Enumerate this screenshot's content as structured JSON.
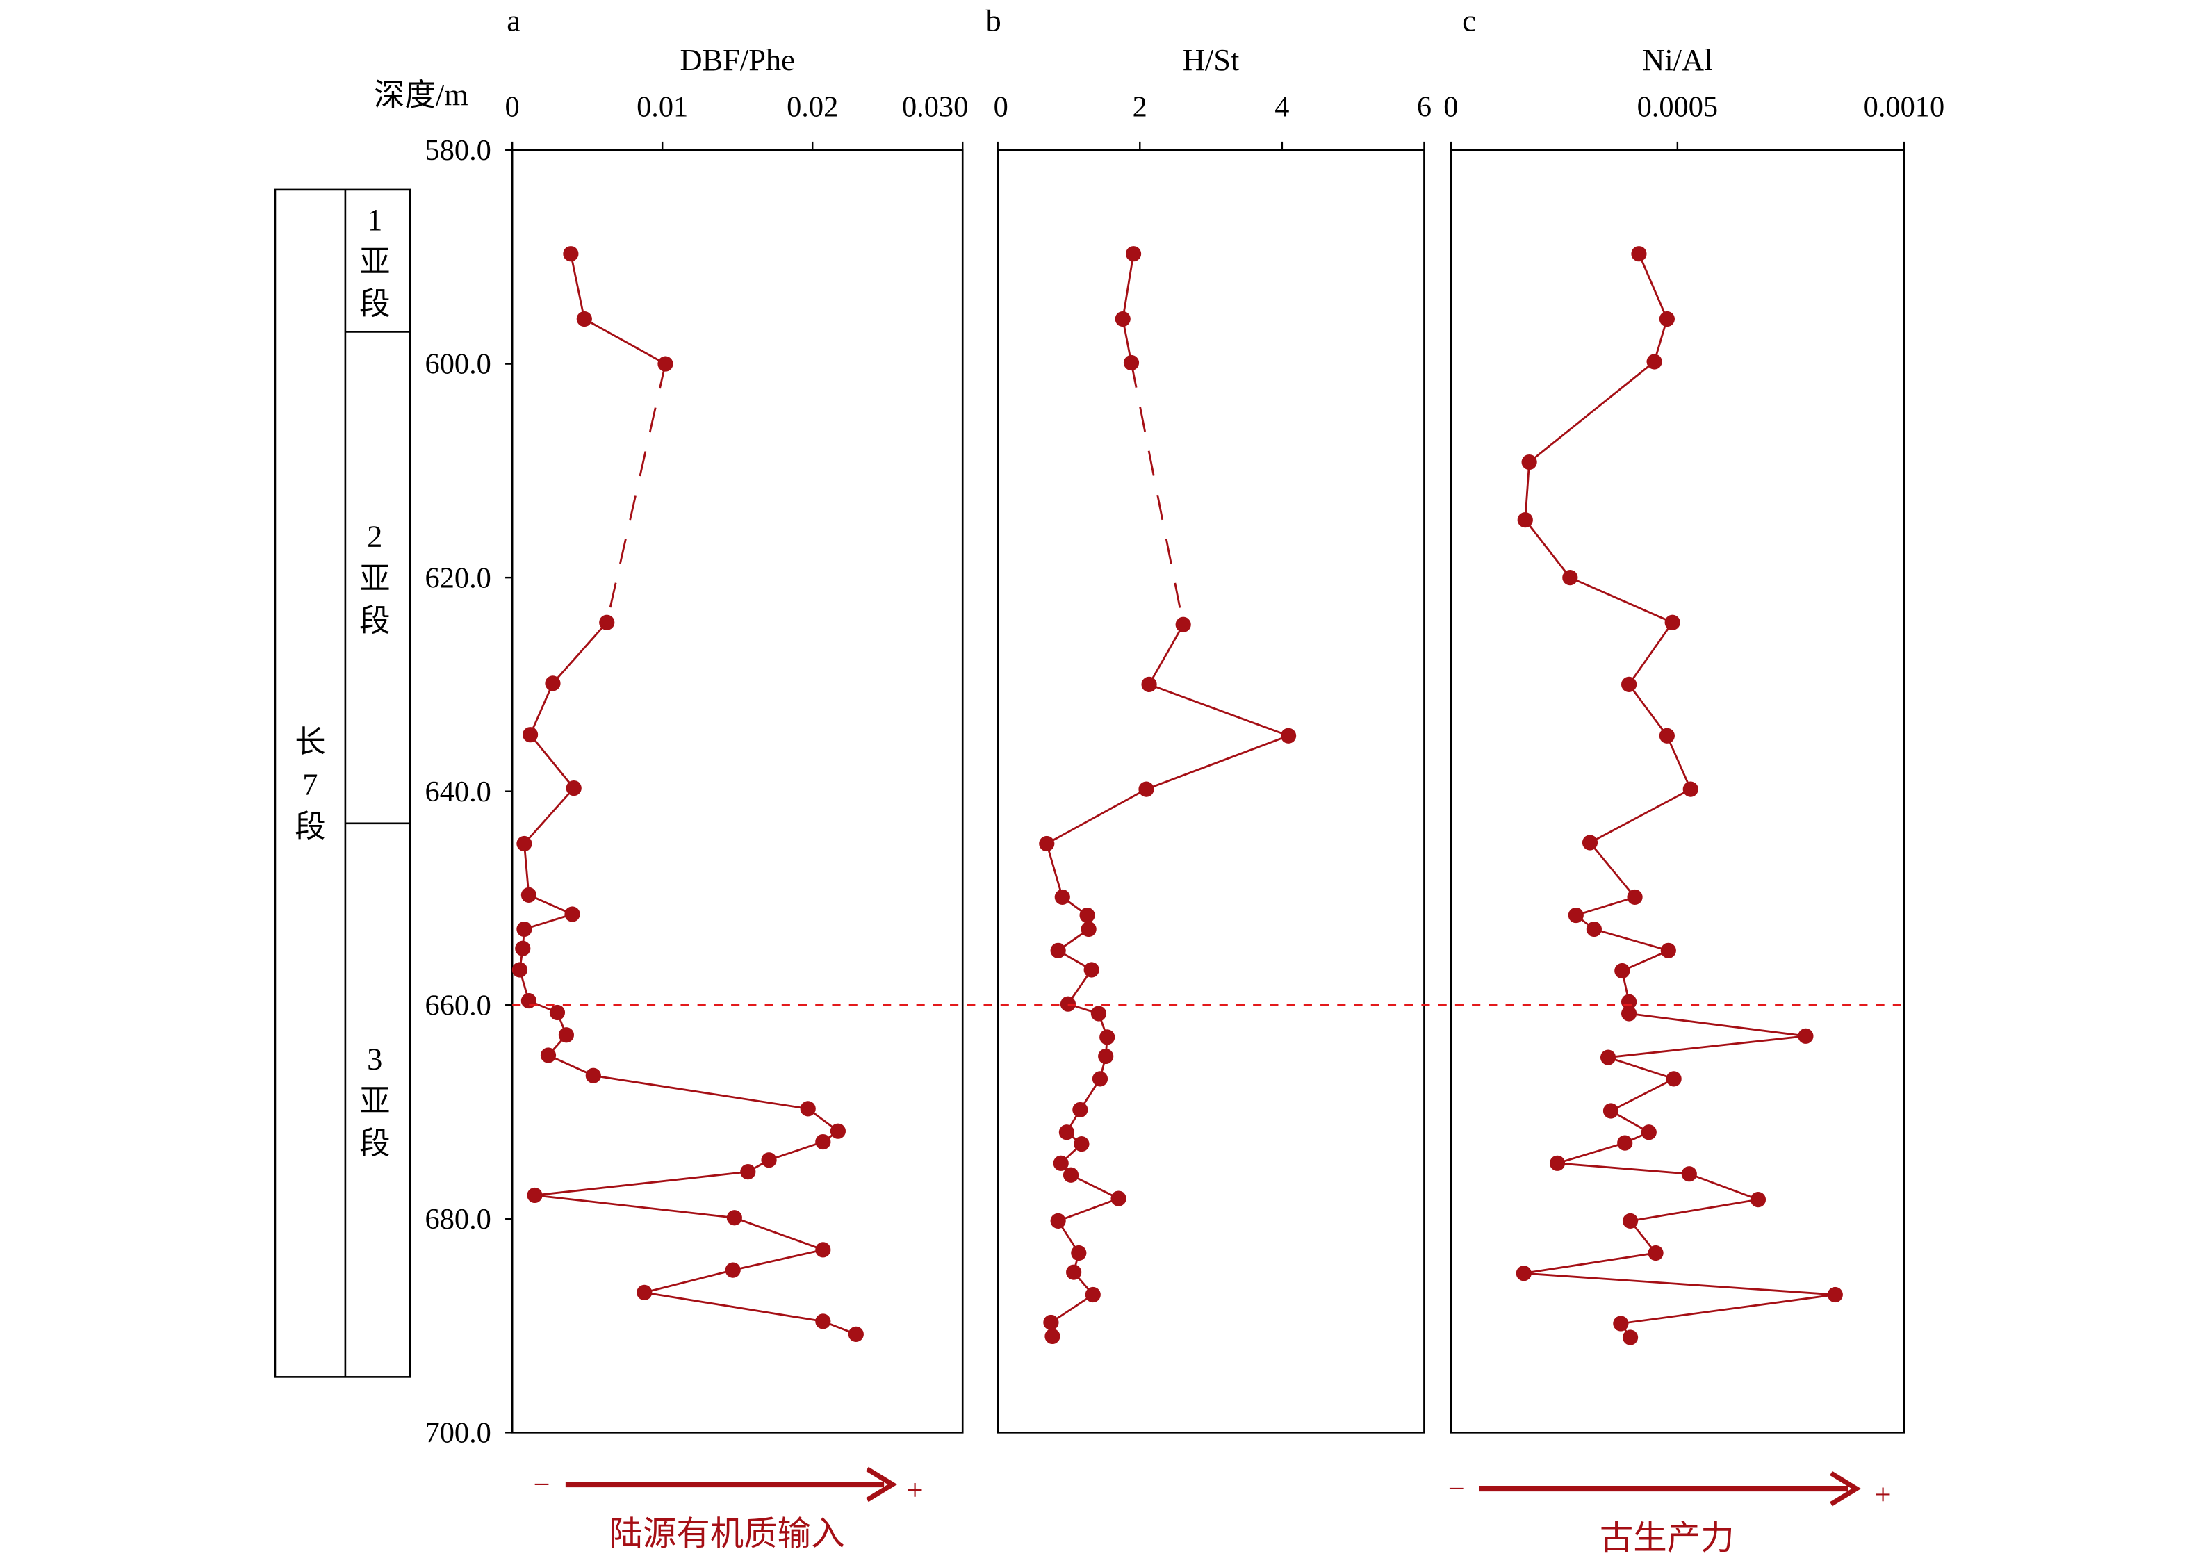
{
  "depth_axis": {
    "label": "深度/m",
    "min": 580,
    "max": 700,
    "ticks": [
      "580.0",
      "600.0",
      "620.0",
      "640.0",
      "660.0",
      "680.0",
      "700.0"
    ],
    "tick_values": [
      580,
      600,
      620,
      640,
      660,
      680,
      700
    ]
  },
  "strat_column": {
    "formation": "长\n7\n段",
    "members": [
      {
        "label": "1\n亚\n段",
        "top": 580,
        "bottom": 597
      },
      {
        "label": "2\n亚\n段",
        "top": 597,
        "bottom": 643
      },
      {
        "label": "3\n亚\n段",
        "top": 643,
        "bottom": 691
      }
    ],
    "top": 583.7,
    "bottom": 694.8
  },
  "boundary_depth": 660,
  "colors": {
    "series": "#a50f15",
    "boundary": "#e31a1c"
  },
  "chart_data": [
    {
      "type": "line",
      "panel": "a",
      "title": "DBF/Phe",
      "xlim": [
        0,
        0.03
      ],
      "xticks": [
        "0",
        "0.01",
        "0.02",
        "0.030"
      ],
      "xtick_values": [
        0,
        0.01,
        0.02,
        0.03
      ],
      "ylabel": "深度/m",
      "dashed_segment": [
        2,
        3
      ],
      "depth": [
        589.7,
        595.8,
        600.0,
        624.2,
        629.9,
        634.7,
        639.7,
        644.9,
        649.7,
        651.5,
        652.9,
        654.7,
        656.7,
        659.6,
        660.7,
        662.8,
        664.7,
        666.6,
        669.7,
        671.8,
        672.8,
        674.5,
        675.6,
        677.8,
        679.9,
        682.9,
        684.8,
        686.9,
        689.6,
        690.8
      ],
      "values": [
        0.0039,
        0.0048,
        0.0102,
        0.0063,
        0.0027,
        0.0012,
        0.0041,
        0.0008,
        0.0011,
        0.004,
        0.0008,
        0.0007,
        0.0005,
        0.0011,
        0.003,
        0.0036,
        0.0024,
        0.0054,
        0.0197,
        0.0217,
        0.0207,
        0.0171,
        0.0157,
        0.0015,
        0.0148,
        0.0207,
        0.0147,
        0.0088,
        0.0207,
        0.0229
      ],
      "arrow": {
        "minus": "−",
        "plus": "+",
        "label": "陆源有机质输入"
      }
    },
    {
      "type": "line",
      "panel": "b",
      "title": "H/St",
      "xlim": [
        0,
        6
      ],
      "xticks": [
        "0",
        "2",
        "4",
        "6"
      ],
      "xtick_values": [
        0,
        2,
        4,
        6
      ],
      "dashed_segment": [
        2,
        3
      ],
      "depth": [
        589.7,
        595.8,
        599.9,
        624.4,
        630.0,
        634.8,
        639.8,
        644.9,
        649.9,
        651.6,
        652.9,
        654.9,
        656.7,
        659.9,
        660.8,
        663.0,
        664.8,
        666.9,
        669.8,
        671.9,
        673.0,
        674.8,
        675.9,
        678.1,
        680.2,
        683.2,
        685.0,
        687.1,
        689.7,
        691.0
      ],
      "values": [
        1.91,
        1.76,
        1.88,
        2.61,
        2.13,
        4.09,
        2.09,
        0.69,
        0.91,
        1.26,
        1.28,
        0.85,
        1.32,
        0.99,
        1.42,
        1.54,
        1.52,
        1.44,
        1.16,
        0.97,
        1.18,
        0.89,
        1.03,
        1.7,
        0.85,
        1.14,
        1.07,
        1.34,
        0.75,
        0.77
      ]
    },
    {
      "type": "line",
      "panel": "c",
      "title": "Ni/Al",
      "xlim": [
        0,
        0.001
      ],
      "xticks": [
        "0",
        "0.0005",
        "0.0010"
      ],
      "xtick_values": [
        0,
        0.0005,
        0.001
      ],
      "dashed_segment": null,
      "depth": [
        589.7,
        595.8,
        599.8,
        609.2,
        614.6,
        620.0,
        624.2,
        630.0,
        634.8,
        639.8,
        644.8,
        649.9,
        651.6,
        652.9,
        654.9,
        656.8,
        659.7,
        660.8,
        662.9,
        664.9,
        666.9,
        669.9,
        671.9,
        672.9,
        674.8,
        675.8,
        678.2,
        680.2,
        683.2,
        685.1,
        687.1,
        689.8,
        691.1
      ],
      "values": [
        0.000415,
        0.000477,
        0.000449,
        0.000173,
        0.000164,
        0.000263,
        0.000489,
        0.000393,
        0.000477,
        0.000529,
        0.000307,
        0.000406,
        0.000276,
        0.000316,
        0.00048,
        0.000378,
        0.000393,
        0.000393,
        0.000783,
        0.000347,
        0.000492,
        0.000353,
        0.000437,
        0.000384,
        0.000235,
        0.000526,
        0.000678,
        0.000396,
        0.000452,
        0.000161,
        0.000848,
        0.000375,
        0.000396
      ],
      "arrow": {
        "minus": "−",
        "plus": "+",
        "label": "古生产力"
      }
    }
  ]
}
